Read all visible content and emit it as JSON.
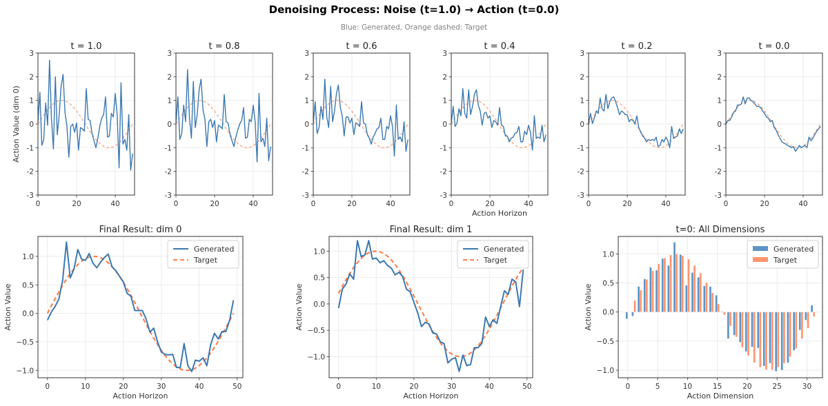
{
  "figure": {
    "title": "Denoising Process: Noise (t=1.0) → Action (t=0.0)",
    "subtitle": "Blue: Generated, Orange dashed: Target"
  },
  "colors": {
    "generated": "#3a78b0",
    "target": "#ff7f50",
    "target_faded": "#f7a88a",
    "bar_generated": "#5d94c6",
    "bar_target": "#ff9570",
    "grid": "#ebebeb",
    "axes": "#333333"
  },
  "chart_data": [
    {
      "type": "line",
      "title": "t = 1.0",
      "xlabel": "",
      "ylabel": "Action Value (dim 0)",
      "xlim": [
        0,
        50
      ],
      "ylim": [
        -3,
        3
      ],
      "xticks": [
        "0",
        "20",
        "40"
      ],
      "yticks": [
        "-3",
        "-2",
        "-1",
        "0",
        "1",
        "2",
        "3"
      ],
      "grid": true,
      "series": [
        {
          "name": "Generated",
          "values": [
            0.1,
            1.35,
            -0.9,
            -0.65,
            0.9,
            -0.05,
            2.7,
            0.2,
            -1.05,
            2.0,
            -0.45,
            0.4,
            1.6,
            2.1,
            0.5,
            -0.1,
            -1.4,
            -0.1,
            0.0,
            -0.35,
            0.05,
            -1.1,
            -0.15,
            -0.2,
            -0.3,
            1.5,
            0.2,
            0.15,
            -0.4,
            -0.7,
            -1.0,
            -0.6,
            -0.1,
            0.25,
            0.4,
            1.15,
            -0.55,
            -0.5,
            0.45,
            0.3,
            1.3,
            0.4,
            -1.85,
            1.75,
            -0.85,
            -0.65,
            -1.1,
            0.4,
            -1.95,
            -1.25
          ]
        },
        {
          "name": "Target",
          "function": "sin",
          "values": []
        }
      ]
    },
    {
      "type": "line",
      "title": "t = 0.8",
      "xlabel": "",
      "ylabel": "",
      "xlim": [
        0,
        50
      ],
      "ylim": [
        -3,
        3
      ],
      "xticks": [
        "0",
        "20",
        "40"
      ],
      "yticks": [
        "-3",
        "-2",
        "-1",
        "0",
        "1",
        "2",
        "3"
      ],
      "grid": true,
      "series": [
        {
          "name": "Generated",
          "values": [
            0.05,
            1.15,
            -0.65,
            -0.4,
            0.8,
            0.1,
            2.3,
            0.25,
            -0.6,
            1.8,
            -0.15,
            0.4,
            1.45,
            1.9,
            0.6,
            0.2,
            -0.95,
            0.1,
            0.2,
            -0.15,
            0.15,
            -0.75,
            -0.05,
            -0.1,
            -0.2,
            1.25,
            0.1,
            0.05,
            -0.45,
            -0.7,
            -0.95,
            -0.55,
            -0.25,
            0.0,
            0.15,
            0.7,
            -0.6,
            -0.55,
            0.2,
            0.1,
            0.8,
            0.1,
            -1.6,
            1.3,
            -0.75,
            -0.6,
            -0.95,
            0.25,
            -1.55,
            -0.95
          ]
        },
        {
          "name": "Target",
          "function": "sin",
          "values": []
        }
      ]
    },
    {
      "type": "line",
      "title": "t = 0.6",
      "xlabel": "",
      "ylabel": "",
      "xlim": [
        0,
        50
      ],
      "ylim": [
        -3,
        3
      ],
      "xticks": [
        "0",
        "20",
        "40"
      ],
      "yticks": [
        "-3",
        "-2",
        "-1",
        "0",
        "1",
        "2",
        "3"
      ],
      "grid": true,
      "series": [
        {
          "name": "Generated",
          "values": [
            0.05,
            0.95,
            -0.4,
            -0.15,
            0.75,
            0.2,
            1.9,
            0.3,
            -0.15,
            1.6,
            0.1,
            0.55,
            1.3,
            1.65,
            0.7,
            0.35,
            -0.5,
            0.3,
            0.3,
            0.05,
            0.25,
            -0.45,
            0.05,
            0.0,
            -0.1,
            0.95,
            0.05,
            0.0,
            -0.45,
            -0.6,
            -0.85,
            -0.55,
            -0.4,
            -0.2,
            -0.15,
            0.25,
            -0.65,
            -0.65,
            -0.1,
            -0.2,
            0.35,
            -0.1,
            -1.35,
            0.8,
            -0.65,
            -0.55,
            -0.75,
            0.1,
            -1.15,
            -0.65
          ]
        },
        {
          "name": "Target",
          "function": "sin",
          "values": []
        }
      ]
    },
    {
      "type": "line",
      "title": "t = 0.4",
      "xlabel": "Action Horizon",
      "ylabel": "",
      "xlim": [
        0,
        50
      ],
      "ylim": [
        -3,
        3
      ],
      "xticks": [
        "0",
        "20",
        "40"
      ],
      "yticks": [
        "-3",
        "-2",
        "-1",
        "0",
        "1",
        "2",
        "3"
      ],
      "grid": true,
      "series": [
        {
          "name": "Generated",
          "values": [
            0.05,
            0.75,
            -0.1,
            0.05,
            0.65,
            0.35,
            1.5,
            0.45,
            0.25,
            1.45,
            0.4,
            0.75,
            1.25,
            1.45,
            0.8,
            0.55,
            -0.05,
            0.45,
            0.5,
            0.25,
            0.35,
            -0.15,
            0.15,
            0.1,
            -0.05,
            0.7,
            -0.05,
            -0.1,
            -0.5,
            -0.5,
            -0.75,
            -0.6,
            -0.55,
            -0.4,
            -0.35,
            -0.1,
            -0.75,
            -0.75,
            -0.3,
            -0.45,
            -0.05,
            -0.35,
            -1.1,
            0.35,
            -0.6,
            -0.55,
            -0.6,
            -0.05,
            -0.75,
            -0.45
          ]
        },
        {
          "name": "Target",
          "function": "sin",
          "values": []
        }
      ]
    },
    {
      "type": "line",
      "title": "t = 0.2",
      "xlabel": "",
      "ylabel": "",
      "xlim": [
        0,
        50
      ],
      "ylim": [
        -3,
        3
      ],
      "xticks": [
        "0",
        "20",
        "40"
      ],
      "yticks": [
        "-3",
        "-2",
        "-1",
        "0",
        "1",
        "2",
        "3"
      ],
      "grid": true,
      "series": [
        {
          "name": "Generated",
          "values": [
            0.0,
            0.45,
            0.02,
            0.25,
            0.55,
            0.45,
            1.1,
            0.65,
            0.55,
            1.25,
            0.65,
            0.95,
            1.1,
            1.15,
            0.95,
            0.7,
            0.4,
            0.55,
            0.5,
            0.4,
            0.4,
            0.1,
            0.2,
            0.15,
            0.0,
            0.35,
            -0.15,
            -0.35,
            -0.5,
            -0.6,
            -0.75,
            -0.65,
            -0.7,
            -0.65,
            -0.7,
            -0.55,
            -0.95,
            -0.9,
            -0.65,
            -0.75,
            -0.55,
            -0.7,
            -1.0,
            -0.1,
            -0.6,
            -0.55,
            -0.5,
            -0.2,
            -0.4,
            -0.2
          ]
        },
        {
          "name": "Target",
          "function": "sin",
          "values": []
        }
      ]
    },
    {
      "type": "line",
      "title": "t = 0.0",
      "xlabel": "",
      "ylabel": "",
      "xlim": [
        0,
        50
      ],
      "ylim": [
        -3,
        3
      ],
      "xticks": [
        "0",
        "20",
        "40"
      ],
      "yticks": [
        "-3",
        "-2",
        "-1",
        "0",
        "1",
        "2",
        "3"
      ],
      "grid": true,
      "series": [
        {
          "name": "Generated",
          "values": [
            0.0,
            0.15,
            0.15,
            0.3,
            0.5,
            0.55,
            0.8,
            0.8,
            0.85,
            1.15,
            0.85,
            1.1,
            1.1,
            1.0,
            0.95,
            0.85,
            0.75,
            0.75,
            0.7,
            0.55,
            0.45,
            0.3,
            0.25,
            0.1,
            0.15,
            -0.15,
            -0.25,
            -0.45,
            -0.6,
            -0.75,
            -0.8,
            -0.85,
            -0.9,
            -0.95,
            -1.0,
            -0.95,
            -1.15,
            -1.05,
            -0.9,
            -1.0,
            -0.95,
            -0.9,
            -1.0,
            -0.55,
            -0.7,
            -0.6,
            -0.45,
            -0.3,
            -0.2,
            -0.1
          ]
        },
        {
          "name": "Target",
          "function": "sin",
          "values": []
        }
      ]
    },
    {
      "type": "line",
      "title": "Final Result: dim 0",
      "xlabel": "Action Horizon",
      "ylabel": "Action Value",
      "xlim": [
        -2.5,
        51.5
      ],
      "ylim": [
        -1.13,
        1.35
      ],
      "xticks": [
        "0",
        "10",
        "20",
        "30",
        "40",
        "50"
      ],
      "yticks": [
        "−1.0",
        "−0.5",
        "0.0",
        "0.5",
        "1.0"
      ],
      "grid": true,
      "legend": {
        "position": "top-right",
        "entries": [
          "Generated",
          "Target"
        ]
      },
      "series": [
        {
          "name": "Generated",
          "values": [
            -0.12,
            0.02,
            0.12,
            0.25,
            0.58,
            1.25,
            0.62,
            0.78,
            1.12,
            0.95,
            0.93,
            1.05,
            0.88,
            0.8,
            0.9,
            0.98,
            1.04,
            0.82,
            0.75,
            0.65,
            0.55,
            0.35,
            0.3,
            0.05,
            0.05,
            0.05,
            -0.1,
            -0.33,
            -0.26,
            -0.5,
            -0.68,
            -0.72,
            -0.73,
            -0.72,
            -0.95,
            -0.95,
            -0.53,
            -0.92,
            -1.02,
            -0.82,
            -0.84,
            -0.78,
            -0.92,
            -0.55,
            -0.35,
            -0.45,
            -0.32,
            -0.32,
            -0.12,
            0.23
          ]
        },
        {
          "name": "Target",
          "function": "sin",
          "values": []
        }
      ]
    },
    {
      "type": "line",
      "title": "Final Result: dim 1",
      "xlabel": "Action Horizon",
      "ylabel": "Action Value",
      "xlim": [
        -2.5,
        51.5
      ],
      "ylim": [
        -1.4,
        1.28
      ],
      "xticks": [
        "0",
        "10",
        "20",
        "30",
        "40",
        "50"
      ],
      "yticks": [
        "−1.0",
        "−0.5",
        "0.0",
        "0.5",
        "1.0"
      ],
      "grid": true,
      "legend": {
        "position": "top-right",
        "entries": [
          "Generated",
          "Target"
        ]
      },
      "series": [
        {
          "name": "Generated",
          "values": [
            -0.08,
            0.28,
            0.38,
            0.57,
            0.47,
            1.2,
            0.9,
            0.93,
            1.2,
            0.85,
            0.87,
            0.78,
            0.82,
            0.73,
            0.68,
            0.55,
            0.6,
            0.52,
            0.28,
            0.23,
            0.03,
            -0.17,
            -0.43,
            -0.35,
            -0.38,
            -0.55,
            -0.57,
            -0.72,
            -0.75,
            -1.12,
            -1.05,
            -1.02,
            -1.28,
            -0.97,
            -1.17,
            -1.15,
            -0.83,
            -0.83,
            -0.75,
            -0.25,
            -0.43,
            -0.3,
            -0.37,
            -0.05,
            0.25,
            0.18,
            0.47,
            0.42,
            -0.05,
            0.65
          ]
        },
        {
          "name": "Target",
          "function": "sin",
          "values": []
        }
      ]
    },
    {
      "type": "bar",
      "title": "t=0: All Dimensions",
      "xlabel": "Action Dimension",
      "ylabel": "Action Value",
      "xlim": [
        -1.6,
        32.6
      ],
      "ylim": [
        -1.13,
        1.3
      ],
      "xticks": [
        "0",
        "5",
        "10",
        "15",
        "20",
        "25",
        "30"
      ],
      "yticks": [
        "−1.0",
        "−0.5",
        "0.0",
        "0.5",
        "1.0"
      ],
      "grid": true,
      "legend": {
        "position": "top-right",
        "entries": [
          "Generated",
          "Target"
        ]
      },
      "categories": [
        0,
        1,
        2,
        3,
        4,
        5,
        6,
        7,
        8,
        9,
        10,
        11,
        12,
        13,
        14,
        15,
        16,
        17,
        18,
        19,
        20,
        21,
        22,
        23,
        24,
        25,
        26,
        27,
        28,
        29,
        30,
        31
      ],
      "series": [
        {
          "name": "Generated",
          "values": [
            -0.12,
            -0.07,
            0.44,
            0.57,
            0.77,
            0.72,
            0.92,
            0.8,
            1.2,
            0.99,
            0.46,
            0.68,
            0.6,
            0.45,
            0.44,
            0.29,
            0.01,
            -0.46,
            -0.4,
            -0.52,
            -0.68,
            -0.6,
            -0.62,
            -0.93,
            -0.88,
            -1.02,
            -1.0,
            -0.87,
            -0.66,
            -0.31,
            -0.14,
            0.12
          ]
        },
        {
          "name": "Target",
          "values": [
            0.0,
            0.2,
            0.38,
            0.56,
            0.71,
            0.83,
            0.93,
            0.98,
            1.0,
            0.97,
            0.91,
            0.8,
            0.67,
            0.51,
            0.33,
            0.14,
            -0.05,
            -0.24,
            -0.43,
            -0.61,
            -0.75,
            -0.87,
            -0.95,
            -0.99,
            -0.99,
            -0.95,
            -0.88,
            -0.77,
            -0.63,
            -0.46,
            -0.28,
            -0.08
          ]
        }
      ]
    }
  ]
}
